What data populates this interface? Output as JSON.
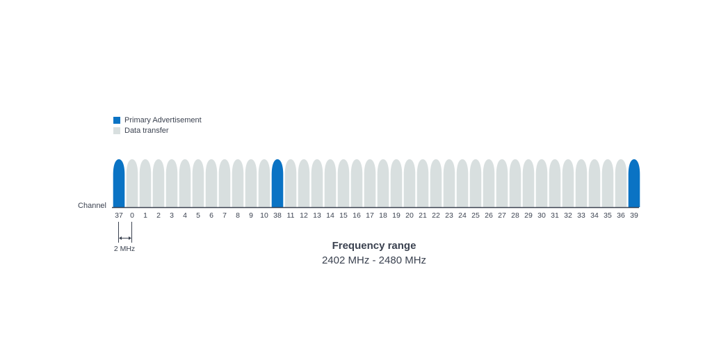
{
  "legend": {
    "items": [
      {
        "label": "Primary Advertisement",
        "color": "#0a73c4"
      },
      {
        "label": "Data transfer",
        "color": "#d8dfdf"
      }
    ]
  },
  "axis": {
    "title": "Channel"
  },
  "channels": [
    {
      "label": "37",
      "type": "primary"
    },
    {
      "label": "0",
      "type": "data"
    },
    {
      "label": "1",
      "type": "data"
    },
    {
      "label": "2",
      "type": "data"
    },
    {
      "label": "3",
      "type": "data"
    },
    {
      "label": "4",
      "type": "data"
    },
    {
      "label": "5",
      "type": "data"
    },
    {
      "label": "6",
      "type": "data"
    },
    {
      "label": "7",
      "type": "data"
    },
    {
      "label": "8",
      "type": "data"
    },
    {
      "label": "9",
      "type": "data"
    },
    {
      "label": "10",
      "type": "data"
    },
    {
      "label": "38",
      "type": "primary"
    },
    {
      "label": "11",
      "type": "data"
    },
    {
      "label": "12",
      "type": "data"
    },
    {
      "label": "13",
      "type": "data"
    },
    {
      "label": "14",
      "type": "data"
    },
    {
      "label": "15",
      "type": "data"
    },
    {
      "label": "16",
      "type": "data"
    },
    {
      "label": "17",
      "type": "data"
    },
    {
      "label": "18",
      "type": "data"
    },
    {
      "label": "19",
      "type": "data"
    },
    {
      "label": "20",
      "type": "data"
    },
    {
      "label": "21",
      "type": "data"
    },
    {
      "label": "22",
      "type": "data"
    },
    {
      "label": "23",
      "type": "data"
    },
    {
      "label": "24",
      "type": "data"
    },
    {
      "label": "25",
      "type": "data"
    },
    {
      "label": "26",
      "type": "data"
    },
    {
      "label": "27",
      "type": "data"
    },
    {
      "label": "28",
      "type": "data"
    },
    {
      "label": "29",
      "type": "data"
    },
    {
      "label": "30",
      "type": "data"
    },
    {
      "label": "31",
      "type": "data"
    },
    {
      "label": "32",
      "type": "data"
    },
    {
      "label": "33",
      "type": "data"
    },
    {
      "label": "34",
      "type": "data"
    },
    {
      "label": "35",
      "type": "data"
    },
    {
      "label": "36",
      "type": "data"
    },
    {
      "label": "39",
      "type": "primary"
    }
  ],
  "bandwidth_label": "2 MHz",
  "frequency": {
    "title": "Frequency range",
    "range": "2402 MHz - 2480 MHz"
  },
  "colors": {
    "primary": "#0a73c4",
    "data": "#d8dfdf",
    "text": "#3b4250",
    "baseline": "#3b4250"
  }
}
